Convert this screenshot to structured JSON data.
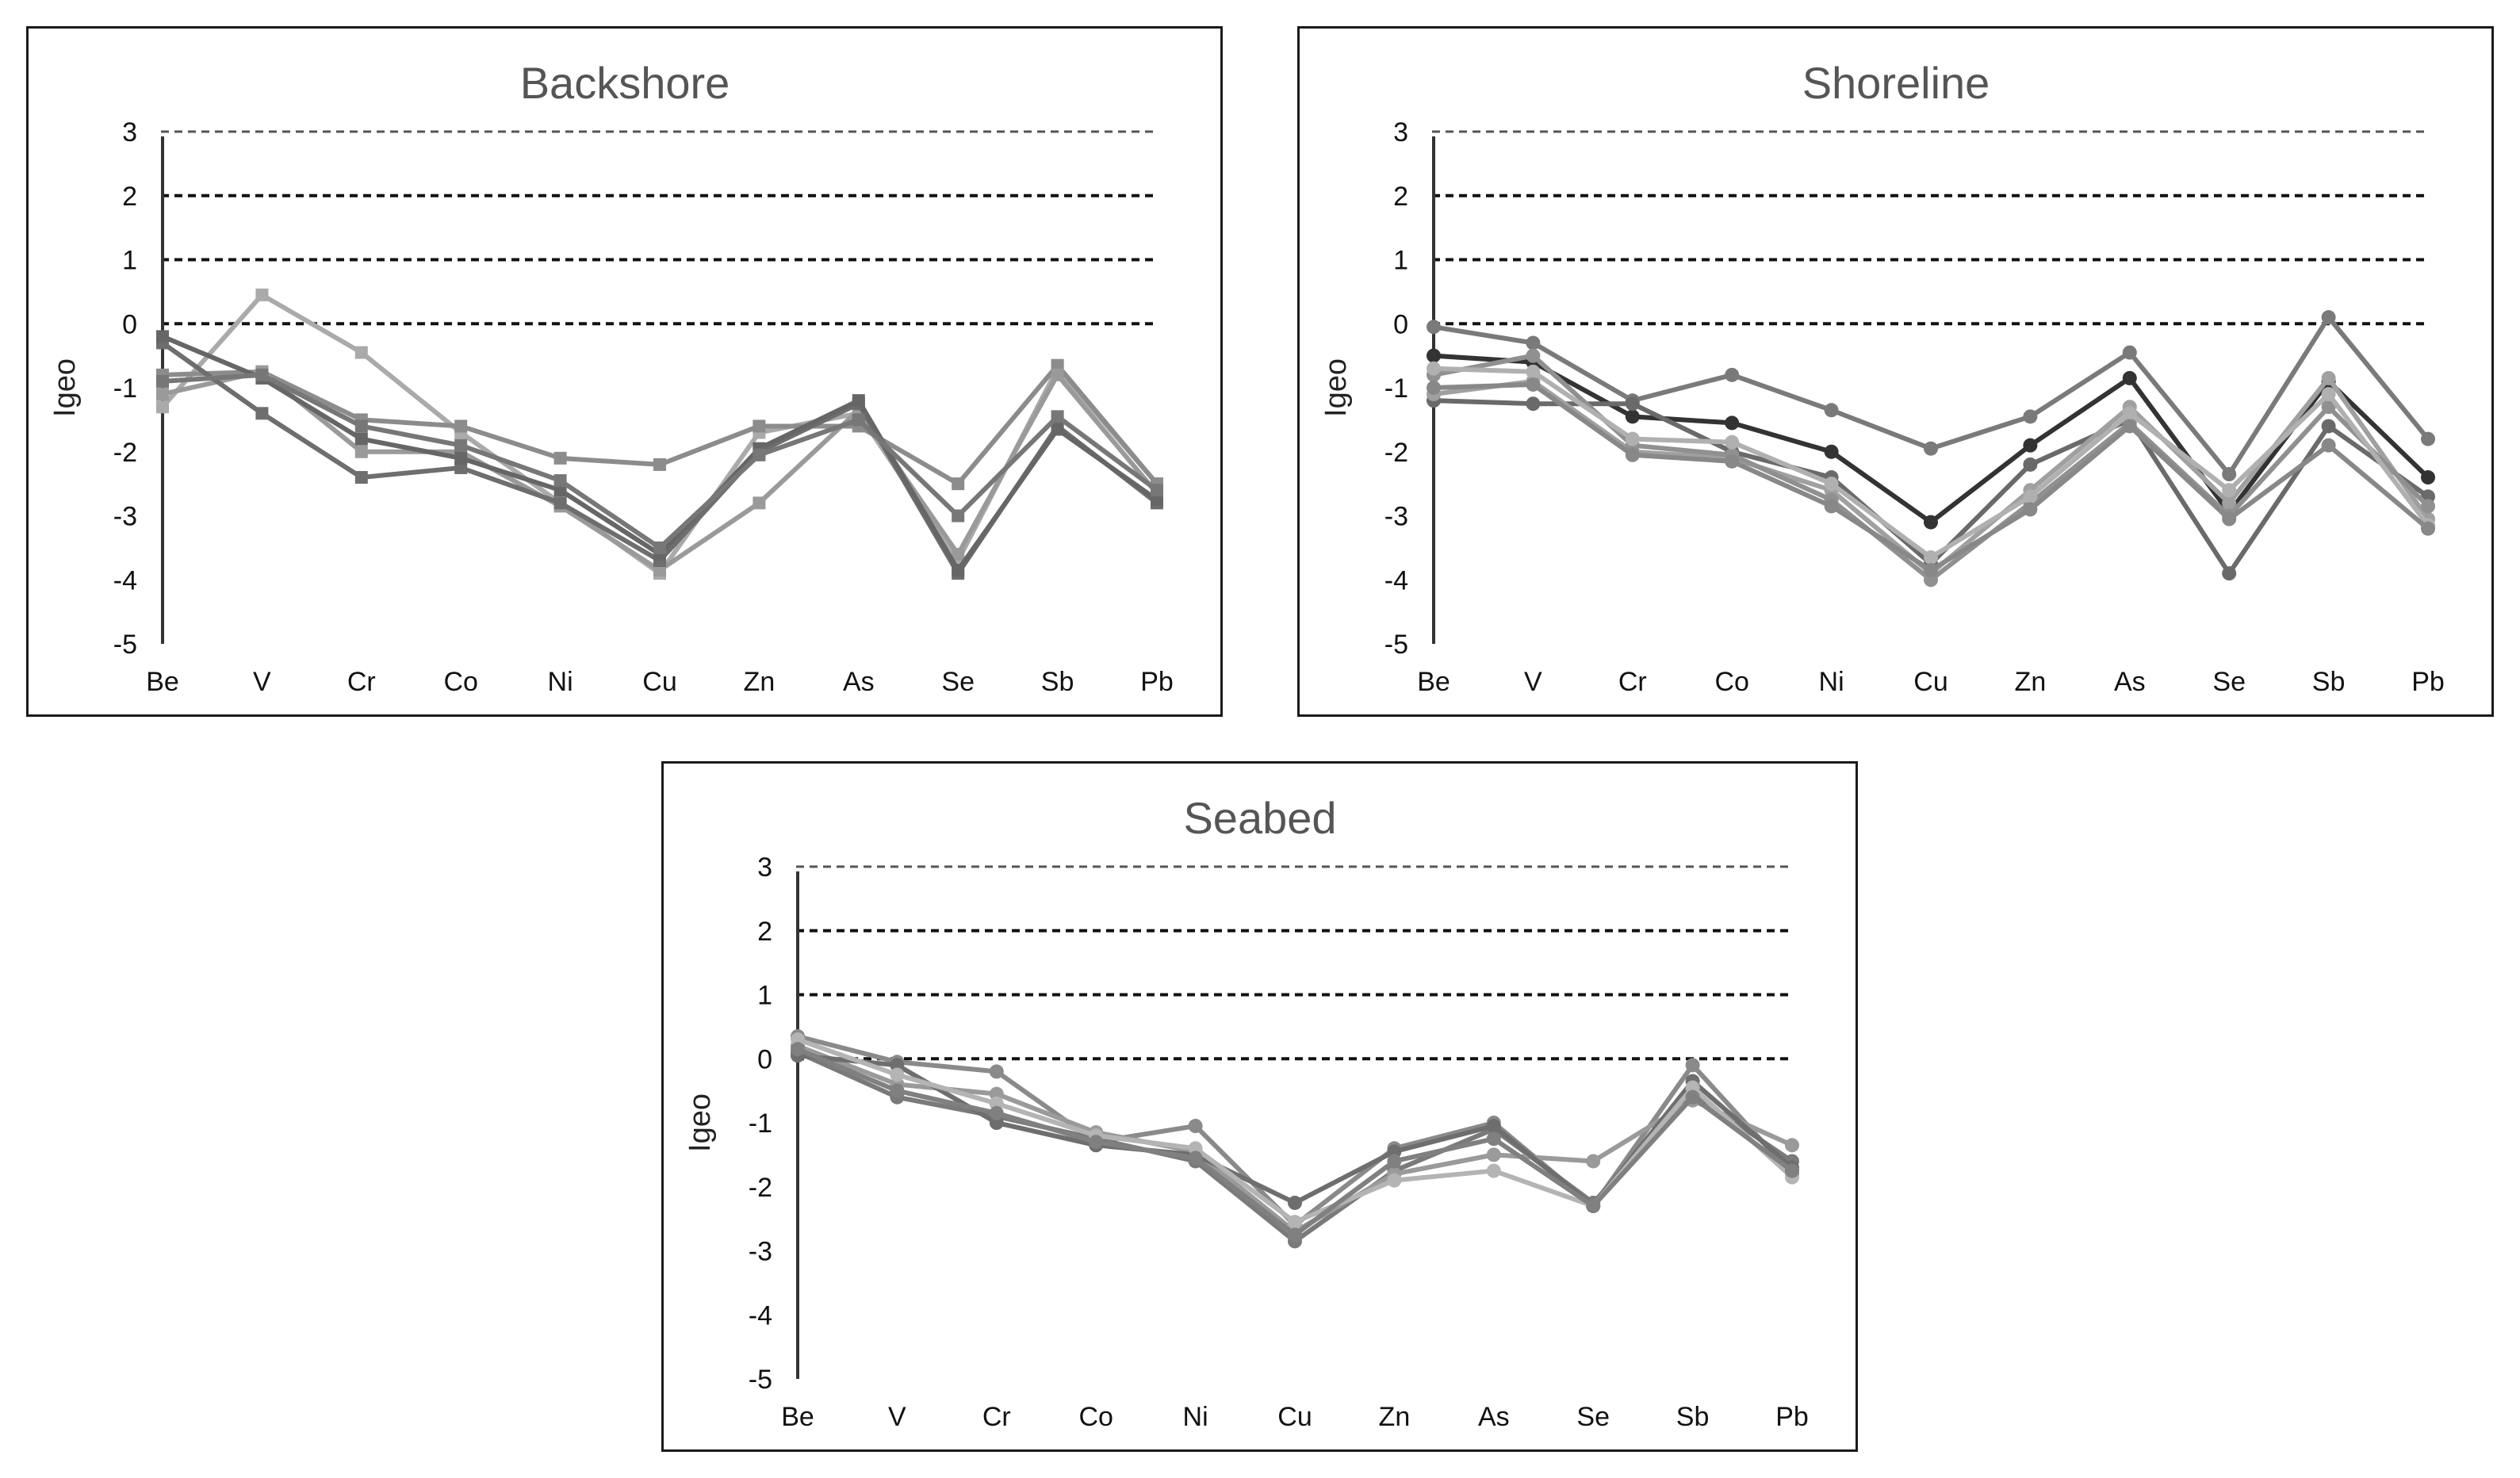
{
  "chart_data": [
    {
      "type": "line",
      "title": "Backshore",
      "xlabel": "",
      "ylabel": "Igeo",
      "ylim": [
        -5,
        3
      ],
      "yticks": [
        "3",
        "2",
        "1",
        "0",
        "-1",
        "-2",
        "-3",
        "-4",
        "-5"
      ],
      "threshold_lines": [
        3,
        2,
        1,
        0
      ],
      "categories": [
        "Be",
        "V",
        "Cr",
        "Co",
        "Ni",
        "Cu",
        "Zn",
        "As",
        "Se",
        "Sb",
        "Pb"
      ],
      "series": [
        {
          "name": "",
          "color": "#aaaaaa",
          "values": [
            -1.3,
            0.45,
            -0.45,
            -1.7,
            -2.8,
            -3.9,
            -1.7,
            -1.4,
            -3.7,
            -0.7,
            -2.5
          ]
        },
        {
          "name": "",
          "color": "#8c8c8c",
          "values": [
            -0.8,
            -0.75,
            -1.5,
            -1.6,
            -2.1,
            -2.2,
            -1.6,
            -1.6,
            -2.5,
            -0.65,
            -2.5
          ]
        },
        {
          "name": "",
          "color": "#9a9a9a",
          "values": [
            -1.1,
            -0.75,
            -2.0,
            -2.0,
            -2.85,
            -3.85,
            -2.8,
            -1.35,
            -3.6,
            -0.8,
            -2.65
          ]
        },
        {
          "name": "",
          "color": "#6e6e6e",
          "values": [
            -0.3,
            -1.4,
            -2.4,
            -2.25,
            -2.8,
            -3.7,
            -2.0,
            -1.25,
            -3.9,
            -1.6,
            -2.8
          ]
        },
        {
          "name": "",
          "color": "#666666",
          "values": [
            -0.2,
            -0.85,
            -1.8,
            -2.1,
            -2.6,
            -3.6,
            -1.95,
            -1.2,
            -3.85,
            -1.65,
            -2.75
          ]
        },
        {
          "name": "",
          "color": "#777777",
          "values": [
            -0.9,
            -0.8,
            -1.6,
            -1.9,
            -2.45,
            -3.5,
            -2.05,
            -1.5,
            -3.0,
            -1.45,
            -2.6
          ]
        }
      ]
    },
    {
      "type": "line",
      "title": "Shoreline",
      "xlabel": "",
      "ylabel": "Igeo",
      "ylim": [
        -5,
        3
      ],
      "yticks": [
        "3",
        "2",
        "1",
        "0",
        "-1",
        "-2",
        "-3",
        "-4",
        "-5"
      ],
      "threshold_lines": [
        3,
        2,
        1,
        0
      ],
      "categories": [
        "Be",
        "V",
        "Cr",
        "Co",
        "Ni",
        "Cu",
        "Zn",
        "As",
        "Se",
        "Sb",
        "Pb"
      ],
      "series": [
        {
          "name": "",
          "color": "#7a7a7a",
          "values": [
            -0.05,
            -0.3,
            -1.2,
            -0.8,
            -1.35,
            -1.95,
            -1.45,
            -0.45,
            -2.35,
            0.1,
            -1.8
          ]
        },
        {
          "name": "",
          "color": "#333333",
          "values": [
            -0.5,
            -0.6,
            -1.45,
            -1.55,
            -2.0,
            -3.1,
            -1.9,
            -0.85,
            -2.95,
            -0.9,
            -2.4
          ]
        },
        {
          "name": "",
          "color": "#6a6a6a",
          "values": [
            -1.2,
            -1.25,
            -1.25,
            -2.0,
            -2.4,
            -3.75,
            -2.2,
            -1.5,
            -3.9,
            -1.6,
            -2.7
          ]
        },
        {
          "name": "",
          "color": "#a0a0a0",
          "values": [
            -1.1,
            -0.9,
            -2.0,
            -2.1,
            -2.6,
            -3.9,
            -2.6,
            -1.3,
            -2.8,
            -0.85,
            -3.05
          ]
        },
        {
          "name": "",
          "color": "#909090",
          "values": [
            -0.8,
            -0.5,
            -1.9,
            -2.05,
            -2.75,
            -4.0,
            -2.8,
            -1.55,
            -3.0,
            -1.3,
            -2.85
          ]
        },
        {
          "name": "",
          "color": "#b0b0b0",
          "values": [
            -0.7,
            -0.75,
            -1.8,
            -1.85,
            -2.5,
            -3.65,
            -2.7,
            -1.4,
            -2.6,
            -1.1,
            -3.15
          ]
        },
        {
          "name": "",
          "color": "#888888",
          "values": [
            -1.0,
            -0.95,
            -2.05,
            -2.15,
            -2.85,
            -3.85,
            -2.9,
            -1.6,
            -3.05,
            -1.9,
            -3.2
          ]
        }
      ]
    },
    {
      "type": "line",
      "title": "Seabed",
      "xlabel": "",
      "ylabel": "Igeo",
      "ylim": [
        -5,
        3
      ],
      "yticks": [
        "3",
        "2",
        "1",
        "0",
        "-1",
        "-2",
        "-3",
        "-4",
        "-5"
      ],
      "threshold_lines": [
        3,
        2,
        1,
        0
      ],
      "categories": [
        "Be",
        "V",
        "Cr",
        "Co",
        "Ni",
        "Cu",
        "Zn",
        "As",
        "Se",
        "Sb",
        "Pb"
      ],
      "series": [
        {
          "name": "",
          "color": "#8a8a8a",
          "values": [
            0.35,
            -0.05,
            -0.2,
            -1.3,
            -1.05,
            -2.6,
            -1.4,
            -1.0,
            -2.3,
            -0.1,
            -1.8
          ]
        },
        {
          "name": "",
          "color": "#7a7a7a",
          "values": [
            0.1,
            -0.6,
            -0.9,
            -1.25,
            -1.6,
            -2.85,
            -1.75,
            -1.1,
            -2.25,
            -0.55,
            -1.6
          ]
        },
        {
          "name": "",
          "color": "#9a9a9a",
          "values": [
            0.2,
            -0.4,
            -0.55,
            -1.15,
            -1.45,
            -2.7,
            -1.8,
            -1.5,
            -1.6,
            -0.65,
            -1.35
          ]
        },
        {
          "name": "",
          "color": "#6e6e6e",
          "values": [
            0.05,
            -0.1,
            -1.0,
            -1.35,
            -1.5,
            -2.25,
            -1.45,
            -1.05,
            -2.3,
            -0.35,
            -1.7
          ]
        },
        {
          "name": "",
          "color": "#b4b4b4",
          "values": [
            0.3,
            -0.25,
            -0.7,
            -1.2,
            -1.4,
            -2.55,
            -1.9,
            -1.75,
            -2.3,
            -0.45,
            -1.85
          ]
        },
        {
          "name": "",
          "color": "#808080",
          "values": [
            0.15,
            -0.5,
            -0.85,
            -1.3,
            -1.55,
            -2.75,
            -1.6,
            -1.25,
            -2.3,
            -0.6,
            -1.75
          ]
        }
      ]
    }
  ]
}
